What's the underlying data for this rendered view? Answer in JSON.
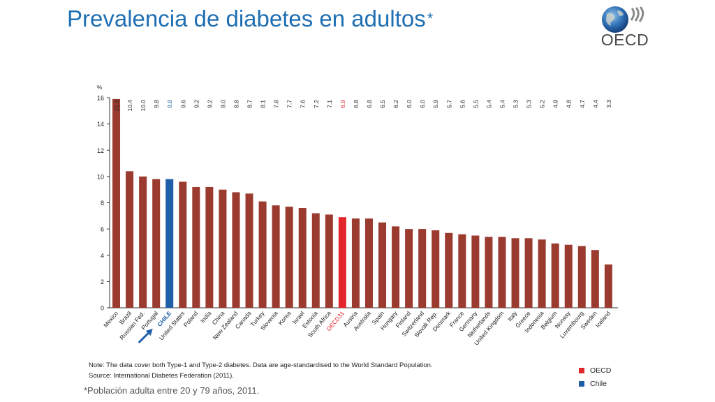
{
  "page": {
    "title": "Prevalencia de diabetes en adultos",
    "title_asterisk": "*",
    "logo_text": "OECD",
    "note_line1": "Note:  The data cover both Type-1 and Type-2 diabetes. Data are age-standardised to the World Standard Population.",
    "note_line2": "Source:  International Diabetes Federation (2011).",
    "footnote": "*Población adulta entre 20 y 79 años, 2011.",
    "legend": [
      {
        "label": "OECD",
        "color": "#e3262b"
      },
      {
        "label": "Chile",
        "color": "#1f5fa8"
      }
    ],
    "chile_arrow_icon": "arrow-right-icon"
  },
  "colors": {
    "bar": "#9b3a2f",
    "oecd": "#e3262b",
    "chile": "#1f5fa8",
    "title": "#1f6fb3"
  },
  "chart_data": {
    "type": "bar",
    "ylabel": "%",
    "ylim": [
      0,
      16
    ],
    "yticks": [
      0,
      2,
      4,
      6,
      8,
      10,
      12,
      14,
      16
    ],
    "grid": false,
    "legend_position": "bottom-right",
    "categories": [
      "Mexico",
      "Brazil",
      "Russian Fed.",
      "Portugal",
      "CHILE",
      "United States",
      "Poland",
      "India",
      "China",
      "New Zealand",
      "Canada",
      "Turkey",
      "Slovenia",
      "Korea",
      "Israel",
      "Estonia",
      "South Africa",
      "OECD31",
      "Austria",
      "Australia",
      "Spain",
      "Hungary",
      "Finland",
      "Switzerland",
      "Slovak Rep.",
      "Denmark",
      "France",
      "Germany",
      "Netherlands",
      "United Kingdom",
      "Italy",
      "Greece",
      "Indonesia",
      "Belgium",
      "Norway",
      "Luxembourg",
      "Sweden",
      "Iceland"
    ],
    "values": [
      15.9,
      10.4,
      10.0,
      9.8,
      9.8,
      9.6,
      9.2,
      9.2,
      9.0,
      8.8,
      8.7,
      8.1,
      7.8,
      7.7,
      7.6,
      7.2,
      7.1,
      6.9,
      6.8,
      6.8,
      6.5,
      6.2,
      6.0,
      6.0,
      5.9,
      5.7,
      5.6,
      5.5,
      5.4,
      5.4,
      5.3,
      5.3,
      5.2,
      4.9,
      4.8,
      4.7,
      4.4,
      3.3
    ],
    "data_labels": [
      "15.9",
      "10.4",
      "10.0",
      "9.8",
      "9.8",
      "9.6",
      "9.2",
      "9.2",
      "9.0",
      "8.8",
      "8.7",
      "8.1",
      "7.8",
      "7.7",
      "7.6",
      "7.2",
      "7.1",
      "6.9",
      "6.8",
      "6.8",
      "6.5",
      "6.2",
      "6.0",
      "6.0",
      "5.9",
      "5.7",
      "5.6",
      "5.5",
      "5.4",
      "5.4",
      "5.3",
      "5.3",
      "5.2",
      "4.9",
      "4.8",
      "4.7",
      "4.4",
      "3.3"
    ],
    "highlight": {
      "CHILE": "chile",
      "OECD31": "oecd"
    }
  }
}
